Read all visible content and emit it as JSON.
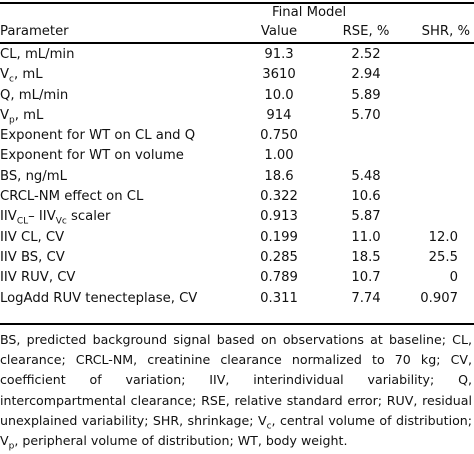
{
  "table": {
    "group_header": "Final Model",
    "columns": {
      "parameter": "Parameter",
      "value": "Value",
      "rse": "RSE, %",
      "shr": "SHR, %"
    },
    "rows": [
      {
        "parameter": "CL, mL/min",
        "value": "91.3",
        "rse": "2.52",
        "shr": ""
      },
      {
        "parameter_main": "V",
        "parameter_sub": "c",
        "parameter_tail": ", mL",
        "value": "3610",
        "rse": "2.94",
        "shr": ""
      },
      {
        "parameter": "Q, mL/min",
        "value": "10.0",
        "rse": "5.89",
        "shr": ""
      },
      {
        "parameter_main": "V",
        "parameter_sub": "p",
        "parameter_tail": ", mL",
        "value": "914",
        "rse": "5.70",
        "shr": ""
      },
      {
        "parameter": "Exponent for WT on CL and Q",
        "value": "0.750",
        "rse": "",
        "shr": ""
      },
      {
        "parameter": "Exponent for WT on volume",
        "value": "1.00",
        "rse": "",
        "shr": ""
      },
      {
        "parameter": "BS, ng/mL",
        "value": "18.6",
        "rse": "5.48",
        "shr": ""
      },
      {
        "parameter": "CRCL-NM effect on CL",
        "value": "0.322",
        "rse": "10.6",
        "shr": ""
      },
      {
        "p1": "IIV",
        "s1": "CL",
        "p2": "– IIV",
        "s2": "Vc",
        "p3": " scaler",
        "value": "0.913",
        "rse": "5.87",
        "shr": ""
      },
      {
        "parameter": "IIV CL, CV",
        "value": "0.199",
        "rse": "11.0",
        "shr": "12.0"
      },
      {
        "parameter": "IIV BS, CV",
        "value": "0.285",
        "rse": "18.5",
        "shr": "25.5"
      },
      {
        "parameter": "IIV RUV, CV",
        "value": "0.789",
        "rse": "10.7",
        "shr": "0"
      },
      {
        "parameter": "LogAdd RUV tenecteplase, CV",
        "value": "0.311",
        "rse": "7.74",
        "shr": "0.907"
      }
    ]
  },
  "footnote": {
    "part1": "BS, predicted background signal based on observations at baseline; CL, clearance; CRCL-NM, creatinine clearance normalized to 70 kg; CV, coefficient of variation; IIV, interindividual variability; Q, intercompartmental clearance; RSE, relative standard error; RUV, residual unexplained variability; SHR, shrinkage; V",
    "sub1": "c",
    "part2": ", central volume of distribution; V",
    "sub2": "p",
    "part3": ", peripheral volume of distribution; WT, body weight."
  }
}
